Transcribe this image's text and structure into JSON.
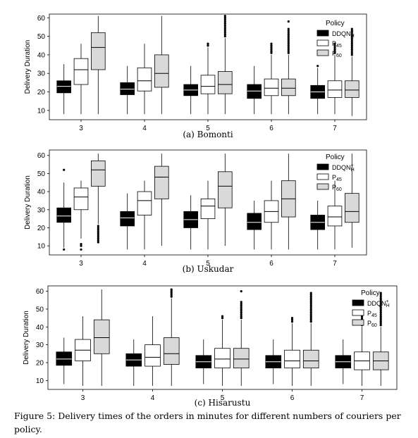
{
  "figure_caption": "Figure 5: Delivery times of the orders in minutes for different numbers of couriers per policy.",
  "chart_data": [
    {
      "type": "box",
      "subcaption": "(a) Bomonti",
      "ylabel": "Delivery Duration",
      "ylim": [
        5,
        62
      ],
      "yticks": [
        10,
        20,
        30,
        40,
        50,
        60
      ],
      "categories": [
        "3",
        "4",
        "5",
        "6",
        "7"
      ],
      "legend": {
        "title": "Policy",
        "position": "top-right"
      },
      "series": [
        {
          "name": "DDQN",
          "sup": "+",
          "sub": "H",
          "color": "#000000",
          "boxes": [
            {
              "whislo": 8,
              "q1": 19.5,
              "med": 23,
              "q3": 26,
              "whishi": 35,
              "fliers": []
            },
            {
              "whislo": 8,
              "q1": 18.5,
              "med": 21.5,
              "q3": 25,
              "whishi": 34,
              "fliers": []
            },
            {
              "whislo": 8,
              "q1": 18,
              "med": 21,
              "q3": 24,
              "whishi": 34,
              "fliers": []
            },
            {
              "whislo": 8,
              "q1": 16.5,
              "med": 20.5,
              "q3": 24,
              "whishi": 34,
              "fliers": []
            },
            {
              "whislo": 8,
              "q1": 16.5,
              "med": 20,
              "q3": 23.5,
              "whishi": 33,
              "fliers": [
                34
              ]
            }
          ]
        },
        {
          "name": "P",
          "sub": "45",
          "color": "#ffffff",
          "boxes": [
            {
              "whislo": 8,
              "q1": 24,
              "med": 32,
              "q3": 38,
              "whishi": 46,
              "fliers": []
            },
            {
              "whislo": 8,
              "q1": 20.5,
              "med": 26,
              "q3": 33,
              "whishi": 46,
              "fliers": []
            },
            {
              "whislo": 8,
              "q1": 19,
              "med": 23,
              "q3": 29,
              "whishi": 44,
              "fliers": [
                45,
                46
              ]
            },
            {
              "whislo": 8,
              "q1": 18,
              "med": 22,
              "q3": 27,
              "whishi": 40,
              "fliers": [
                41,
                42,
                43,
                44,
                45,
                46
              ]
            },
            {
              "whislo": 8,
              "q1": 17,
              "med": 21,
              "q3": 26,
              "whishi": 40,
              "fliers": [
                41,
                42,
                43,
                44,
                45,
                46
              ]
            }
          ]
        },
        {
          "name": "P",
          "sub": "60",
          "color": "#d9d9d9",
          "boxes": [
            {
              "whislo": 8,
              "q1": 32,
              "med": 44,
              "q3": 52,
              "whishi": 61,
              "fliers": []
            },
            {
              "whislo": 8,
              "q1": 22.5,
              "med": 30,
              "q3": 40,
              "whishi": 61,
              "fliers": []
            },
            {
              "whislo": 8,
              "q1": 19,
              "med": 24,
              "q3": 31,
              "whishi": 49,
              "fliers": [
                50,
                51,
                52,
                53,
                54,
                55,
                56,
                57,
                58,
                59,
                60,
                61
              ]
            },
            {
              "whislo": 8,
              "q1": 18,
              "med": 22,
              "q3": 27,
              "whishi": 40,
              "fliers": [
                41,
                42,
                43,
                44,
                45,
                46,
                47,
                48,
                49,
                50,
                51,
                52,
                53,
                54,
                58
              ]
            },
            {
              "whislo": 7,
              "q1": 17,
              "med": 21,
              "q3": 26,
              "whishi": 39,
              "fliers": [
                40,
                41,
                42,
                43,
                44,
                45,
                46,
                47,
                48,
                49,
                50,
                51,
                52,
                53,
                54
              ]
            }
          ]
        }
      ]
    },
    {
      "type": "box",
      "subcaption": "(b) Uskudar",
      "ylabel": "Delivery Duration",
      "ylim": [
        5,
        63
      ],
      "yticks": [
        10,
        20,
        30,
        40,
        50,
        60
      ],
      "categories": [
        "3",
        "4",
        "5",
        "6",
        "7"
      ],
      "legend": {
        "title": "Policy",
        "position": "top-right"
      },
      "series": [
        {
          "name": "DDQN",
          "sup": "+",
          "sub": "H",
          "color": "#000000",
          "boxes": [
            {
              "whislo": 9,
              "q1": 23,
              "med": 26.5,
              "q3": 31,
              "whishi": 45,
              "fliers": [
                52,
                8
              ]
            },
            {
              "whislo": 8,
              "q1": 21,
              "med": 25.5,
              "q3": 29,
              "whishi": 39,
              "fliers": []
            },
            {
              "whislo": 8,
              "q1": 20,
              "med": 24.5,
              "q3": 29,
              "whishi": 38,
              "fliers": []
            },
            {
              "whislo": 8,
              "q1": 19,
              "med": 23,
              "q3": 28,
              "whishi": 35,
              "fliers": []
            },
            {
              "whislo": 8,
              "q1": 19,
              "med": 23,
              "q3": 27,
              "whishi": 35,
              "fliers": []
            }
          ]
        },
        {
          "name": "P",
          "sub": "45",
          "color": "#ffffff",
          "boxes": [
            {
              "whislo": 14,
              "q1": 30,
              "med": 37,
              "q3": 42,
              "whishi": 46,
              "fliers": [
                11,
                10,
                8
              ]
            },
            {
              "whislo": 8,
              "q1": 27,
              "med": 35,
              "q3": 40,
              "whishi": 46,
              "fliers": []
            },
            {
              "whislo": 8,
              "q1": 25,
              "med": 32,
              "q3": 36,
              "whishi": 46,
              "fliers": []
            },
            {
              "whislo": 8,
              "q1": 23,
              "med": 29,
              "q3": 35,
              "whishi": 46,
              "fliers": []
            },
            {
              "whislo": 8,
              "q1": 21,
              "med": 26,
              "q3": 32,
              "whishi": 46,
              "fliers": []
            }
          ]
        },
        {
          "name": "P",
          "sub": "60",
          "color": "#d9d9d9",
          "boxes": [
            {
              "whislo": 22,
              "q1": 43,
              "med": 52,
              "q3": 57,
              "whishi": 61,
              "fliers": [
                21,
                20,
                19,
                18,
                17,
                16,
                15,
                14,
                13,
                12
              ]
            },
            {
              "whislo": 10,
              "q1": 36,
              "med": 48,
              "q3": 54,
              "whishi": 61,
              "fliers": []
            },
            {
              "whislo": 10,
              "q1": 31,
              "med": 43,
              "q3": 51,
              "whishi": 61,
              "fliers": []
            },
            {
              "whislo": 8,
              "q1": 26,
              "med": 36,
              "q3": 46,
              "whishi": 61,
              "fliers": []
            },
            {
              "whislo": 9,
              "q1": 23,
              "med": 29,
              "q3": 39,
              "whishi": 61,
              "fliers": []
            }
          ]
        }
      ]
    },
    {
      "type": "box",
      "subcaption": "(c) Hisarustu",
      "ylabel": "Delivery Duration",
      "ylim": [
        5,
        63
      ],
      "yticks": [
        10,
        20,
        30,
        40,
        50,
        60
      ],
      "categories": [
        "3",
        "4",
        "5",
        "6",
        "7"
      ],
      "legend": {
        "title": "Policy",
        "position": "top-right"
      },
      "series": [
        {
          "name": "DDQN",
          "sup": "+",
          "sub": "H",
          "color": "#000000",
          "boxes": [
            {
              "whislo": 8,
              "q1": 18.5,
              "med": 22,
              "q3": 26,
              "whishi": 34,
              "fliers": []
            },
            {
              "whislo": 7,
              "q1": 18,
              "med": 21.5,
              "q3": 25,
              "whishi": 33,
              "fliers": []
            },
            {
              "whislo": 8,
              "q1": 17,
              "med": 20.5,
              "q3": 24,
              "whishi": 33,
              "fliers": []
            },
            {
              "whislo": 8,
              "q1": 17,
              "med": 20.5,
              "q3": 24,
              "whishi": 33,
              "fliers": []
            },
            {
              "whislo": 8,
              "q1": 17,
              "med": 20.5,
              "q3": 24,
              "whishi": 33,
              "fliers": []
            }
          ]
        },
        {
          "name": "P",
          "sub": "45",
          "color": "#ffffff",
          "boxes": [
            {
              "whislo": 7,
              "q1": 21,
              "med": 27,
              "q3": 33,
              "whishi": 46,
              "fliers": []
            },
            {
              "whislo": 7,
              "q1": 18,
              "med": 23,
              "q3": 30,
              "whishi": 46,
              "fliers": []
            },
            {
              "whislo": 7,
              "q1": 17,
              "med": 22,
              "q3": 28,
              "whishi": 44,
              "fliers": [
                45,
                46
              ]
            },
            {
              "whislo": 7,
              "q1": 17,
              "med": 21,
              "q3": 27,
              "whishi": 42,
              "fliers": [
                43,
                44,
                45
              ]
            },
            {
              "whislo": 7,
              "q1": 16,
              "med": 21,
              "q3": 26,
              "whishi": 40,
              "fliers": [
                41,
                42,
                43,
                44,
                45,
                46
              ]
            }
          ]
        },
        {
          "name": "P",
          "sub": "60",
          "color": "#d9d9d9",
          "boxes": [
            {
              "whislo": 7,
              "q1": 25,
              "med": 34,
              "q3": 44,
              "whishi": 61,
              "fliers": []
            },
            {
              "whislo": 7,
              "q1": 19,
              "med": 25,
              "q3": 34,
              "whishi": 56,
              "fliers": [
                57,
                58,
                59,
                60,
                61
              ]
            },
            {
              "whislo": 7,
              "q1": 17,
              "med": 22,
              "q3": 28,
              "whishi": 44,
              "fliers": [
                45,
                46,
                47,
                48,
                49,
                50,
                51,
                52,
                53,
                54,
                60
              ]
            },
            {
              "whislo": 7,
              "q1": 17,
              "med": 21,
              "q3": 27,
              "whishi": 42,
              "fliers": [
                43,
                44,
                45,
                46,
                47,
                48,
                49,
                50,
                51,
                52,
                53,
                54,
                55,
                56,
                57,
                58,
                59
              ]
            },
            {
              "whislo": 7,
              "q1": 16,
              "med": 21,
              "q3": 26,
              "whishi": 40,
              "fliers": [
                41,
                42,
                43,
                44,
                45,
                46,
                47,
                48,
                49,
                50,
                51,
                52,
                53,
                54,
                55,
                56,
                57,
                58,
                59
              ]
            }
          ]
        }
      ]
    }
  ]
}
